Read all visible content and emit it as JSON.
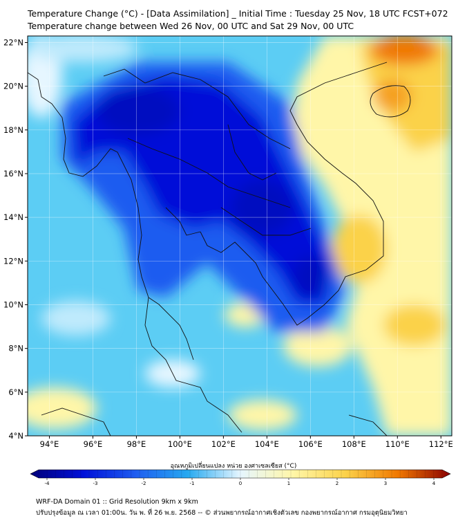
{
  "title": {
    "line1": "Temperature Change (°C) - [Data Assimilation] _ Initial Time : Tuesday 25 Nov, 18 UTC FCST+072",
    "line2": "Temperature change between Wed 26 Nov, 00 UTC and Sat 29 Nov, 00 UTC"
  },
  "map": {
    "lat_labels": [
      "22°N",
      "20°N",
      "18°N",
      "16°N",
      "14°N",
      "12°N",
      "10°N",
      "8°N",
      "6°N",
      "4°N"
    ],
    "lon_labels": [
      "94°E",
      "96°E",
      "98°E",
      "100°E",
      "102°E",
      "104°E",
      "106°E",
      "108°E",
      "110°E",
      "112°E"
    ],
    "lat_values": [
      22,
      20,
      18,
      16,
      14,
      12,
      10,
      8,
      6,
      4
    ],
    "lon_values": [
      94,
      96,
      98,
      100,
      102,
      104,
      106,
      108,
      110,
      112
    ],
    "extent": {
      "lon_min": 93,
      "lon_max": 112.5,
      "lat_min": 4,
      "lat_max": 22.3
    }
  },
  "colorbar": {
    "title": "อุณหภูมิเปลี่ยนแปลง หน่วย องศาเซลเซียส (°C)",
    "tick_labels": [
      "-4",
      "-3",
      "-2",
      "-1",
      "0",
      "1",
      "2",
      "3",
      "4"
    ],
    "tick_values": [
      -4,
      -3,
      -2,
      -1,
      0,
      1,
      2,
      3,
      4
    ],
    "colors": {
      "neg4": "#00007a",
      "neg3": "#0010d8",
      "neg2": "#1e5cf0",
      "neg1": "#27a9f0",
      "zero": "#e6f6ff",
      "pos1": "#fff6a8",
      "pos2": "#fbd24a",
      "pos3": "#f07800",
      "pos4": "#8a0000"
    }
  },
  "footer": {
    "line1": "WRF-DA Domain 01 :: Grid Resolution 9km x 9km",
    "line2": "ปรับปรุงข้อมูล ณ เวลา 01:00น. วัน พ. ที่ 26 พ.ย. 2568 -- © ส่วนพยากรณ์อากาศเชิงตัวเลข กองพยากรณ์อากาศ กรมอุตุนิยมวิทยา"
  }
}
